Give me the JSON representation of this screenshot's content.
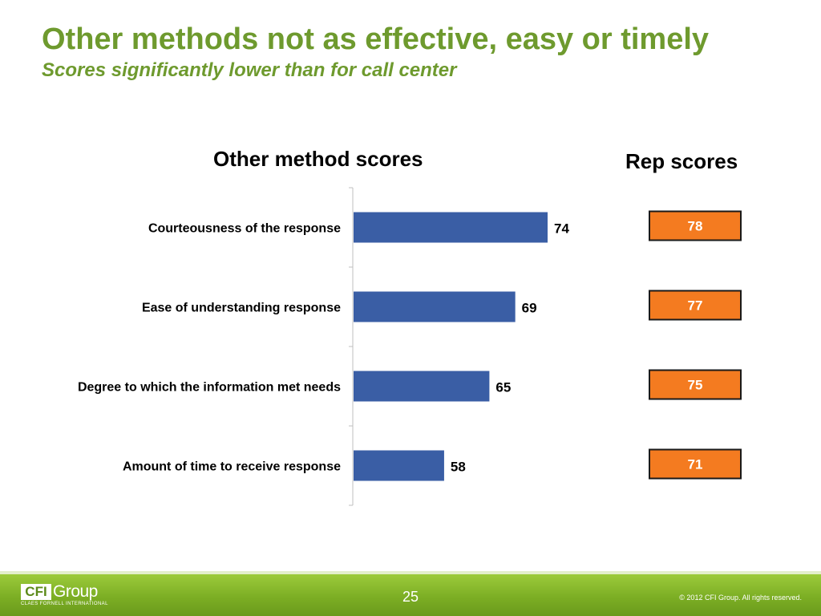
{
  "slide": {
    "title": "Other methods not as effective, easy or timely",
    "subtitle": "Scores significantly lower than for call center"
  },
  "chart_data": {
    "type": "bar",
    "orientation": "horizontal",
    "title": "Other method scores",
    "categories": [
      "Courteousness of the response",
      "Ease of understanding response",
      "Degree to which the information met needs",
      "Amount of time to receive response"
    ],
    "values": [
      74,
      69,
      65,
      58
    ],
    "xlim": [
      44,
      100
    ],
    "grid": false,
    "bar_color": "#3a5ea5",
    "rep_scores": {
      "title": "Rep scores",
      "values": [
        78,
        77,
        75,
        71
      ],
      "color": "#f47b20"
    }
  },
  "footer": {
    "logo_mark": "CFI",
    "logo_word": "Group",
    "logo_tagline": "CLAES FORNELL INTERNATIONAL",
    "page_number": "25",
    "copyright": "© 2012 CFI Group. All rights reserved.",
    "accent": "#7cae24"
  }
}
